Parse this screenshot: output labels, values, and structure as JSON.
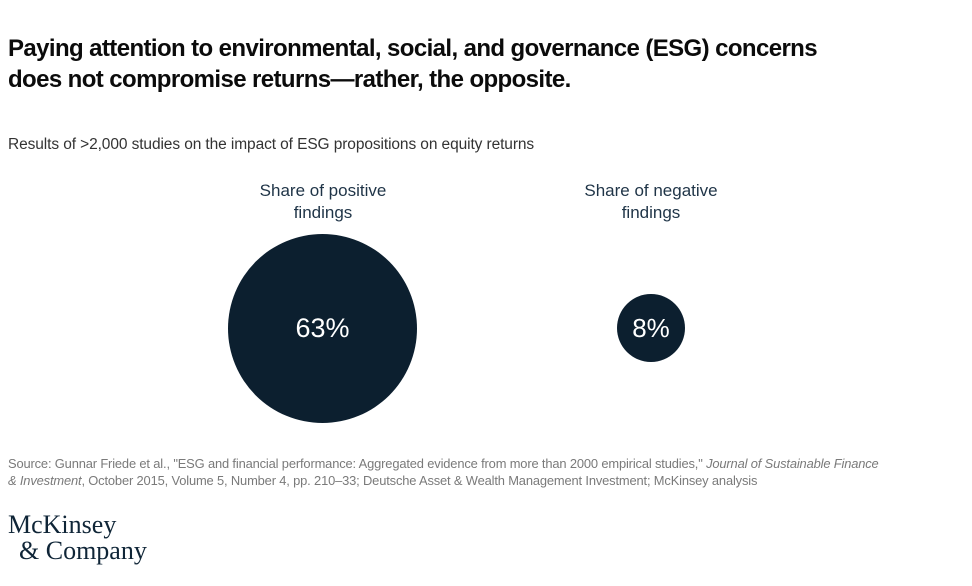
{
  "title": {
    "line1": "Paying attention to environmental, social, and governance (ESG) concerns",
    "line2": "does not compromise returns—rather, the opposite."
  },
  "subtitle": "Results of >2,000 studies on the impact of ESG propositions on equity returns",
  "chart_data": {
    "type": "bubble",
    "title": "Results of >2,000 studies on the impact of ESG propositions on equity returns",
    "categories": [
      "Share of positive findings",
      "Share of negative findings"
    ],
    "values": [
      63,
      8
    ],
    "unit": "%",
    "value_labels": [
      "63%",
      "8%"
    ],
    "category_labels": [
      "Share of positive\nfindings",
      "Share of negative\nfindings"
    ],
    "encoding": "circle area proportional to value",
    "legend": "none",
    "grid": false
  },
  "source": {
    "lines": [
      [
        {
          "text": "Source: Gunnar Friede et al., \"ESG and financial performance: Aggregated evidence from more than 2000 empirical studies,\" ",
          "italic": false
        },
        {
          "text": "Journal of Sustainable Finance",
          "italic": true
        }
      ],
      [
        {
          "text": "& Investment",
          "italic": true
        },
        {
          "text": ", October 2015, Volume 5, Number 4, pp. 210–33; Deutsche Asset & Wealth Management Investment; McKinsey analysis",
          "italic": false
        }
      ]
    ]
  },
  "logo": {
    "line1": "McKinsey",
    "line2": "& Company"
  },
  "colors": {
    "bubble_fill": "#0c1f2f",
    "bubble_value_text": "#ffffff",
    "category_label": "#1f3447",
    "title_text": "#0b0b0b",
    "subtitle_text": "#333333",
    "source_text": "#7a7a7a",
    "logo_text": "#0f2537",
    "background": "#ffffff"
  }
}
